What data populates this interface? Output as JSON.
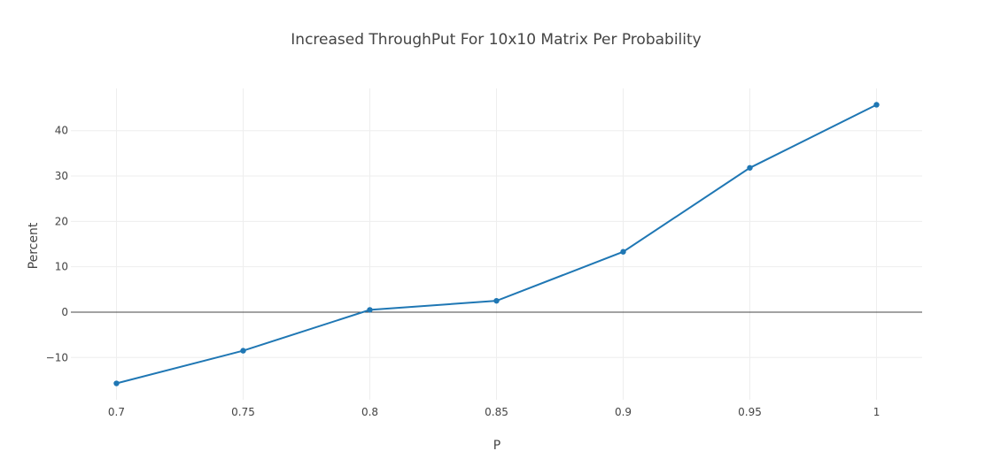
{
  "chart_data": {
    "type": "line",
    "title": "Increased ThroughPut For 10x10 Matrix Per Probability",
    "xlabel": "P",
    "ylabel": "Percent",
    "x": [
      0.7,
      0.75,
      0.8,
      0.85,
      0.9,
      0.95,
      1.0
    ],
    "x_tick_labels": [
      "0.7",
      "0.75",
      "0.8",
      "0.85",
      "0.9",
      "0.95",
      "1"
    ],
    "y_ticks": [
      -10,
      0,
      10,
      20,
      30,
      40
    ],
    "y_tick_labels": [
      "−10",
      "0",
      "10",
      "20",
      "30",
      "40"
    ],
    "xlim": [
      0.682,
      1.018
    ],
    "ylim": [
      -19.3,
      49.3
    ],
    "grid": true,
    "series": [
      {
        "values": [
          -15.7,
          -8.5,
          0.5,
          2.5,
          13.3,
          31.8,
          45.7
        ],
        "color": "#1f77b4"
      }
    ]
  }
}
